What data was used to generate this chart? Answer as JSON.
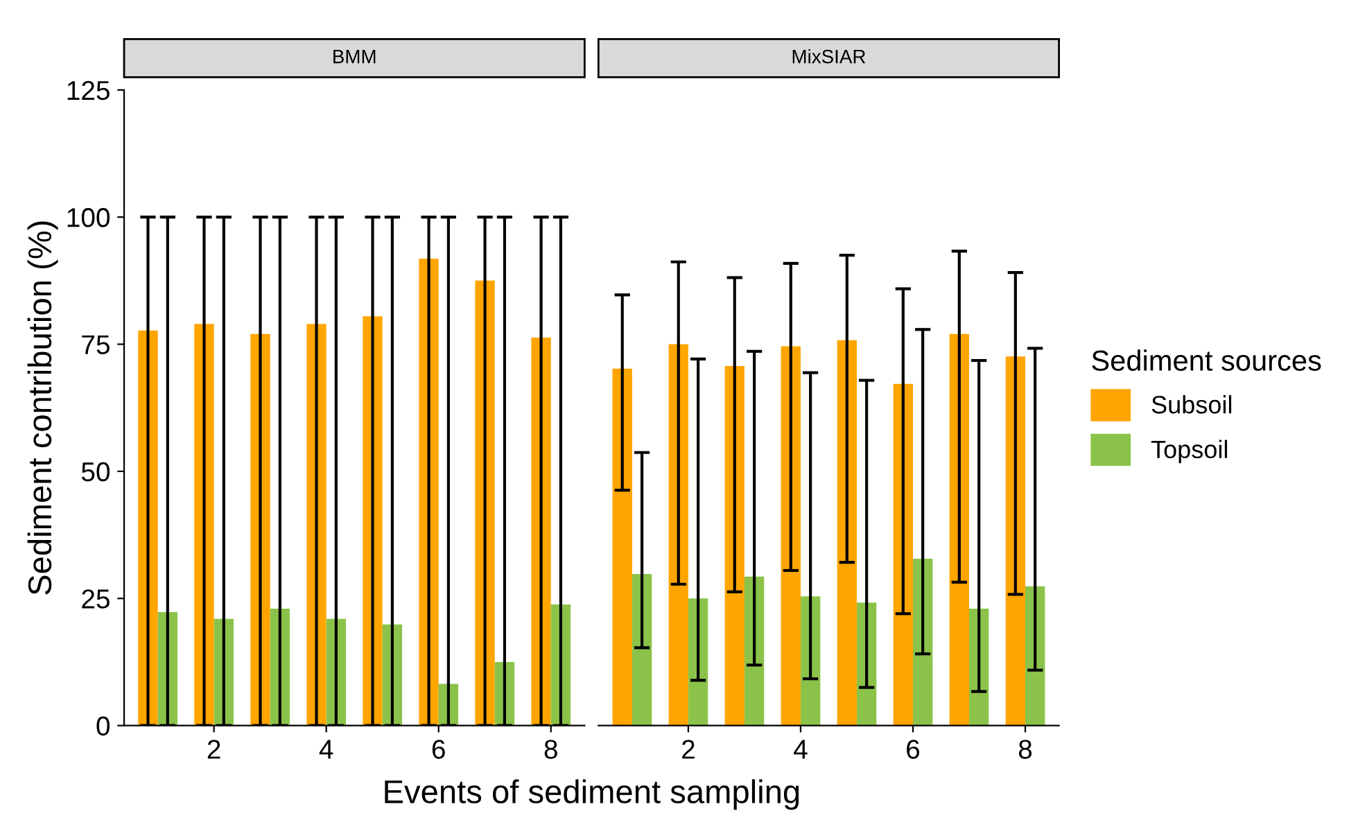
{
  "chart_data": [
    {
      "type": "bar",
      "title": "BMM",
      "xlabel": "Events of sediment sampling",
      "ylabel": "Sediment contribution (%)",
      "x": [
        1,
        2,
        3,
        4,
        5,
        6,
        7,
        8
      ],
      "xlim": [
        0.4,
        8.6
      ],
      "xticks": [
        2,
        4,
        6,
        8
      ],
      "ylim": [
        0,
        125
      ],
      "yticks": [
        0,
        25,
        50,
        75,
        100,
        125
      ],
      "grid": false,
      "series": [
        {
          "color": "#ffa500",
          "values": [
            77.7,
            79,
            77,
            79,
            80.5,
            91.8,
            87.5,
            76.3
          ],
          "errors": [
            [
              0,
              100
            ],
            [
              0,
              100
            ],
            [
              0,
              100
            ],
            [
              0,
              100
            ],
            [
              0,
              100
            ],
            [
              0,
              100
            ],
            [
              0,
              100
            ],
            [
              0,
              100
            ]
          ]
        },
        {
          "color": "#8bc34a",
          "values": [
            22.3,
            21,
            23,
            21,
            19.9,
            8.2,
            12.5,
            23.8
          ],
          "errors": [
            [
              0,
              100
            ],
            [
              0,
              100
            ],
            [
              0,
              100
            ],
            [
              0,
              100
            ],
            [
              0,
              100
            ],
            [
              0,
              100
            ],
            [
              0,
              100
            ],
            [
              0,
              100
            ]
          ]
        }
      ]
    },
    {
      "type": "bar",
      "title": "MixSIAR",
      "x": [
        1,
        2,
        3,
        4,
        5,
        6,
        7,
        8
      ],
      "xlim": [
        0.4,
        8.6
      ],
      "xticks": [
        2,
        4,
        6,
        8
      ],
      "ylim": [
        0,
        125
      ],
      "yticks": [
        0,
        25,
        50,
        75,
        100,
        125
      ],
      "tick_labels": "x",
      "grid": false,
      "legend": "right",
      "legend_title": "Sediment sources",
      "series": [
        {
          "name": "Subsoil",
          "color": "#ffa500",
          "values": [
            70.2,
            75,
            70.7,
            74.6,
            75.8,
            67.2,
            77,
            72.6
          ],
          "errors": [
            [
              46.3,
              84.7
            ],
            [
              27.8,
              91.2
            ],
            [
              26.3,
              88.1
            ],
            [
              30.5,
              90.9
            ],
            [
              32.1,
              92.5
            ],
            [
              22,
              85.9
            ],
            [
              28.2,
              93.3
            ],
            [
              25.8,
              89.1
            ]
          ]
        },
        {
          "name": "Topsoil",
          "color": "#8bc34a",
          "values": [
            29.8,
            25,
            29.3,
            25.4,
            24.2,
            32.8,
            23,
            27.4
          ],
          "errors": [
            [
              15.3,
              53.7
            ],
            [
              8.9,
              72.1
            ],
            [
              11.9,
              73.6
            ],
            [
              9.2,
              69.4
            ],
            [
              7.5,
              67.9
            ],
            [
              14.1,
              77.9
            ],
            [
              6.7,
              71.8
            ],
            [
              10.9,
              74.2
            ]
          ]
        }
      ]
    }
  ]
}
